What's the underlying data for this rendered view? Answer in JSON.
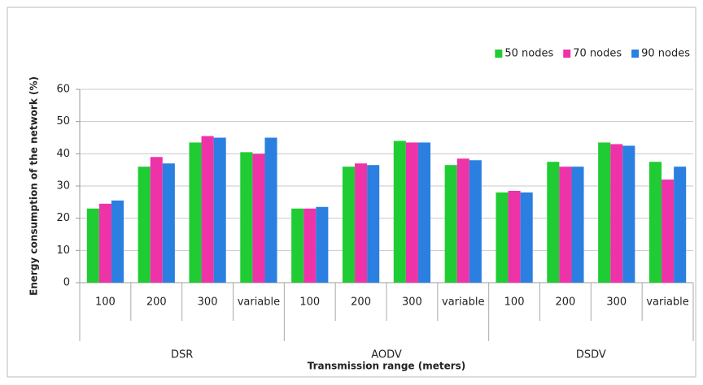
{
  "chart_data": {
    "type": "bar",
    "y_label": "Energy consumption of the network  (%)",
    "x_label": "Transmission range  (meters)",
    "groups": [
      {
        "label": "DSR",
        "categories": [
          "100",
          "200",
          "300",
          "variable"
        ]
      },
      {
        "label": "AODV",
        "categories": [
          "100",
          "200",
          "300",
          "variable"
        ]
      },
      {
        "label": "DSDV",
        "categories": [
          "100",
          "200",
          "300",
          "variable"
        ]
      }
    ],
    "series": [
      {
        "name": "50 nodes",
        "color": "#1fcc33",
        "values": [
          23,
          36,
          43.5,
          40.5,
          23,
          36,
          44,
          36.5,
          28,
          37.5,
          43.5,
          37.5
        ]
      },
      {
        "name": "70 nodes",
        "color": "#ee33a8",
        "values": [
          24.5,
          39,
          45.5,
          40,
          23,
          37,
          43.5,
          38.5,
          28.5,
          36,
          43,
          32
        ]
      },
      {
        "name": "90 nodes",
        "color": "#2a7fe0",
        "values": [
          25.5,
          37,
          45,
          45,
          23.5,
          36.5,
          43.5,
          38,
          28,
          36,
          42.5,
          36
        ]
      }
    ],
    "ylim": [
      0,
      60
    ],
    "yticks": [
      0,
      10,
      20,
      30,
      40,
      50,
      60
    ],
    "grid": true,
    "legend": "top-right"
  }
}
